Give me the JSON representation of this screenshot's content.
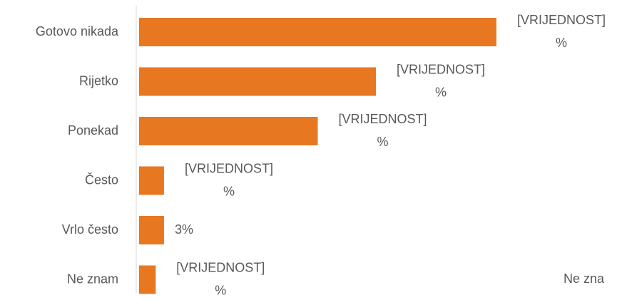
{
  "chart_data": {
    "type": "hbar",
    "categories": [
      "Gotovo nikada",
      "Rijetko",
      "Ponekad",
      "Često",
      "Vrlo često",
      "Ne znam"
    ],
    "values": [
      43,
      28.5,
      21.5,
      3,
      3,
      2
    ],
    "value_labels": [
      "[VRIJEDNOST]\n%",
      "[VRIJEDNOST]\n%",
      "[VRIJEDNOST]\n%",
      "[VRIJEDNOST]\n%",
      "3%",
      "[VRIJEDNOST]\n%"
    ],
    "color": "#e87722",
    "annotation": "Ne zna"
  }
}
